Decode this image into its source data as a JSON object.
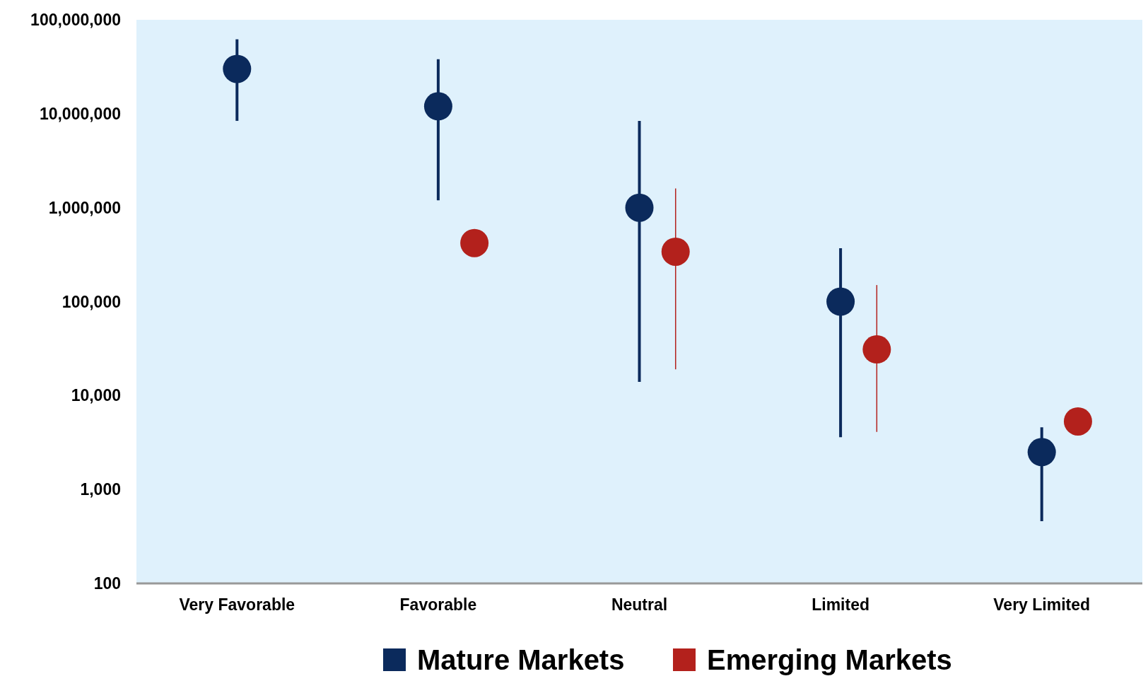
{
  "chart_data": {
    "type": "scatter",
    "categories": [
      "Very Favorable",
      "Favorable",
      "Neutral",
      "Limited",
      "Very Limited"
    ],
    "series": [
      {
        "name": "Mature Markets",
        "color": "#0b2a5c",
        "values": [
          30000000,
          12000000,
          1000000,
          100000,
          2500
        ],
        "errors": [
          [
            8400000,
            62000000
          ],
          [
            1200000,
            38000000
          ],
          [
            14000,
            8400000
          ],
          [
            3600,
            370000
          ],
          [
            460,
            4600
          ]
        ]
      },
      {
        "name": "Emerging Markets",
        "color": "#b3211c",
        "values": [
          null,
          420000,
          340000,
          31000,
          5300
        ],
        "errors": [
          null,
          null,
          [
            19000,
            1600000
          ],
          [
            4100,
            150000
          ],
          null
        ]
      }
    ],
    "log": true,
    "ylim": [
      100,
      100000000
    ],
    "yticks": [
      {
        "value": 100,
        "label": "100"
      },
      {
        "value": 1000,
        "label": "1,000"
      },
      {
        "value": 10000,
        "label": "10,000"
      },
      {
        "value": 100000,
        "label": "100,000"
      },
      {
        "value": 1000000,
        "label": "1,000,000"
      },
      {
        "value": 10000000,
        "label": "10,000,000"
      },
      {
        "value": 100000000,
        "label": "100,000,000"
      }
    ],
    "marker": "circle",
    "legend": "bottom"
  }
}
